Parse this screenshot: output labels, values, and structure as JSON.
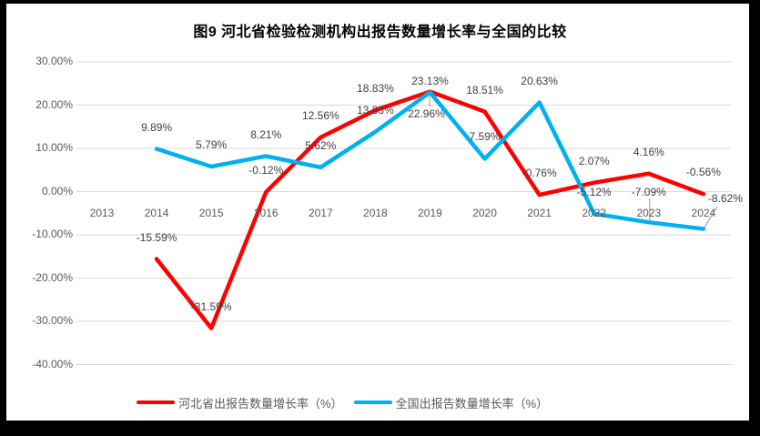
{
  "chart_data": {
    "type": "line",
    "title": "图9 河北省检验检测机构出报告数量增长率与全国的比较",
    "categories": [
      "2013",
      "2014",
      "2015",
      "2016",
      "2017",
      "2018",
      "2019",
      "2020",
      "2021",
      "2022",
      "2023",
      "2024"
    ],
    "xlabel": "",
    "ylabel": "",
    "ylim": [
      -40,
      30
    ],
    "grid": true,
    "legend_position": "bottom",
    "y_ticks": [
      {
        "value": 30,
        "label": "30.00%"
      },
      {
        "value": 20,
        "label": "20.00%"
      },
      {
        "value": 10,
        "label": "10.00%"
      },
      {
        "value": 0,
        "label": "0.00%"
      },
      {
        "value": -10,
        "label": "-10.00%"
      },
      {
        "value": -20,
        "label": "-20.00%"
      },
      {
        "value": -30,
        "label": "-30.00%"
      },
      {
        "value": -40,
        "label": "-40.00%"
      }
    ],
    "series": [
      {
        "name": "河北省出报告数量增长率（%）",
        "color": "#FF0000",
        "values": [
          null,
          -15.59,
          -31.59,
          -0.12,
          12.56,
          18.83,
          23.13,
          18.51,
          -0.76,
          2.07,
          4.16,
          -0.56
        ],
        "labels": [
          null,
          "-15.59%",
          "-31.59%",
          "-0.12%",
          "12.56%",
          "18.83%",
          "23.13%",
          "18.51%",
          "-0.76%",
          "2.07%",
          "4.16%",
          "-0.56%"
        ]
      },
      {
        "name": "全国出报告数量增长率（%）",
        "color": "#00B0F0",
        "values": [
          null,
          9.89,
          5.79,
          8.21,
          5.62,
          13.83,
          22.96,
          7.59,
          20.63,
          -5.12,
          -7.09,
          -8.62
        ],
        "labels": [
          null,
          "9.89%",
          "5.79%",
          "8.21%",
          "5.62%",
          "13.83%",
          "22.96%",
          "7.59%",
          "20.63%",
          "-5.12%",
          "-7.09%",
          "-8.62%"
        ]
      }
    ],
    "colors": {
      "gridline": "#D9D9D9",
      "axis_text": "#595959",
      "data_label_text": "#404040",
      "leader_line": "#A6A6A6",
      "frame": "#000000"
    }
  }
}
